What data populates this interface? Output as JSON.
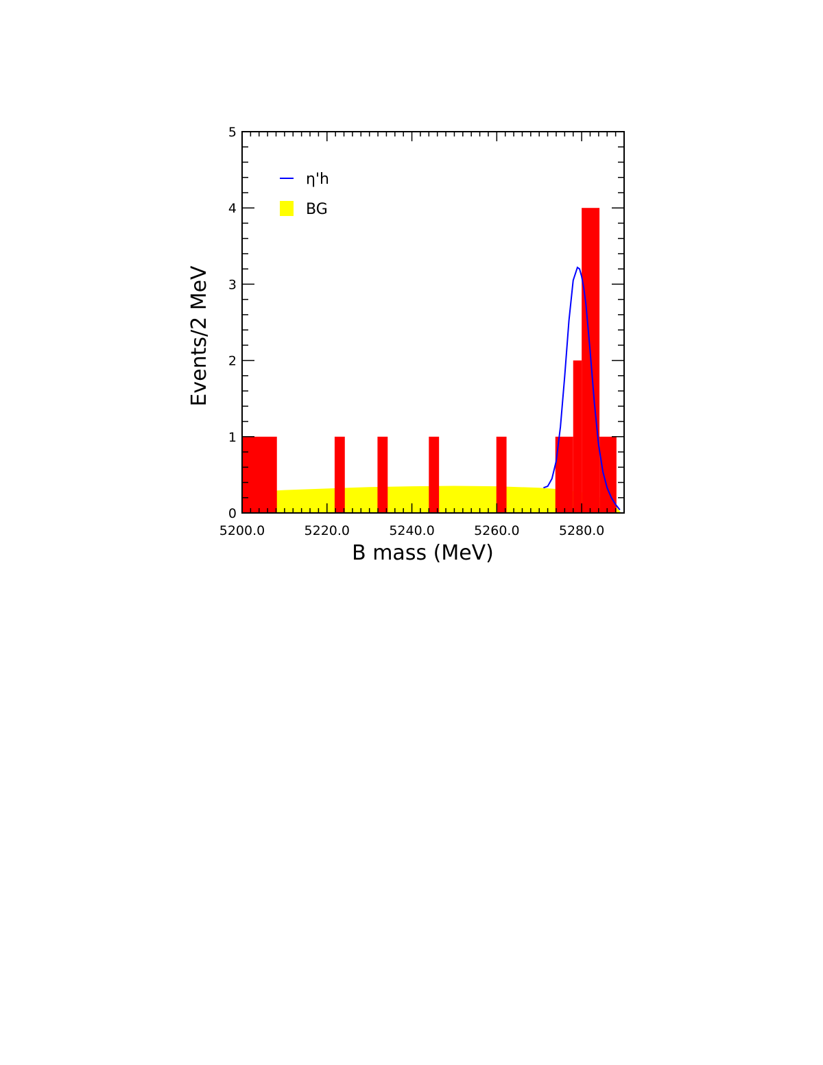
{
  "chart_data": {
    "type": "bar",
    "xlabel": "B mass (MeV)",
    "ylabel": "Events/2 MeV",
    "xlim": [
      5200.0,
      5290.0
    ],
    "ylim": [
      0,
      5
    ],
    "x_ticks": [
      "5200.0",
      "5220.0",
      "5240.0",
      "5260.0",
      "5280.0"
    ],
    "x_tick_values": [
      5200,
      5220,
      5240,
      5260,
      5280
    ],
    "y_ticks": [
      "0",
      "1",
      "2",
      "3",
      "4",
      "5"
    ],
    "y_tick_values": [
      0,
      1,
      2,
      3,
      4,
      5
    ],
    "histogram": {
      "name": "",
      "color": "#ff0000",
      "bins": [
        {
          "x0": 5200.0,
          "x1": 5208.2,
          "count": 1
        },
        {
          "x0": 5221.8,
          "x1": 5224.2,
          "count": 1
        },
        {
          "x0": 5231.9,
          "x1": 5234.3,
          "count": 1
        },
        {
          "x0": 5244.0,
          "x1": 5246.4,
          "count": 1
        },
        {
          "x0": 5259.9,
          "x1": 5262.3,
          "count": 1
        },
        {
          "x0": 5273.8,
          "x1": 5278.0,
          "count": 1
        },
        {
          "x0": 5278.0,
          "x1": 5280.0,
          "count": 2
        },
        {
          "x0": 5280.0,
          "x1": 5284.2,
          "count": 4
        },
        {
          "x0": 5284.2,
          "x1": 5288.2,
          "count": 1
        }
      ]
    },
    "series": [
      {
        "name": "η'h",
        "kind": "line",
        "color": "#0000ff",
        "x": [
          5271.0,
          5272.0,
          5273.0,
          5274.0,
          5275.0,
          5276.0,
          5277.0,
          5278.0,
          5279.0,
          5279.5,
          5280.0,
          5280.5,
          5281.0,
          5282.0,
          5283.0,
          5284.0,
          5285.0,
          5286.0,
          5287.0,
          5288.0,
          5289.0
        ],
        "y": [
          0.33,
          0.35,
          0.45,
          0.68,
          1.13,
          1.79,
          2.52,
          3.05,
          3.22,
          3.2,
          3.1,
          2.95,
          2.74,
          2.12,
          1.44,
          0.89,
          0.54,
          0.33,
          0.2,
          0.11,
          0.04
        ]
      },
      {
        "name": "BG",
        "kind": "area",
        "color": "#ffff00",
        "x": [
          5200,
          5210,
          5220,
          5230,
          5240,
          5250,
          5260,
          5270,
          5275,
          5280,
          5284,
          5286,
          5288,
          5289.3
        ],
        "y": [
          0.27,
          0.3,
          0.32,
          0.34,
          0.35,
          0.355,
          0.35,
          0.33,
          0.31,
          0.27,
          0.21,
          0.16,
          0.09,
          0.0
        ]
      }
    ],
    "legend": {
      "placement": "top-left",
      "entries": [
        {
          "label": "η'h",
          "marker": "line",
          "color": "#0000ff"
        },
        {
          "label": "BG",
          "marker": "box",
          "color": "#ffff00"
        }
      ]
    },
    "grid": false
  }
}
